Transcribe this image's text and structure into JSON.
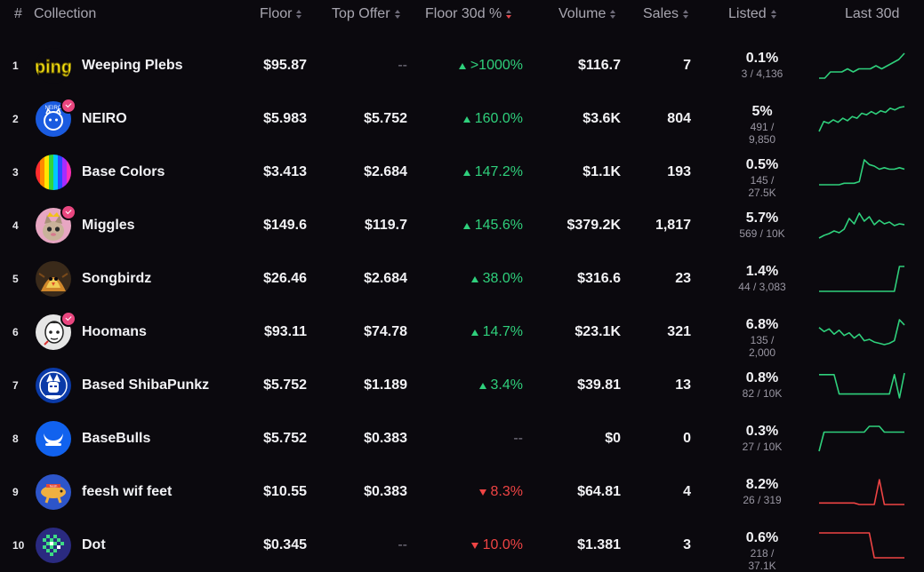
{
  "header": {
    "rank": "#",
    "collection": "Collection",
    "floor": "Floor",
    "top_offer": "Top Offer",
    "floor_30d": "Floor 30d %",
    "volume": "Volume",
    "sales": "Sales",
    "listed": "Listed",
    "last_30d": "Last 30d"
  },
  "colors": {
    "positive": "#2fd07c",
    "negative": "#ef4444"
  },
  "rows": [
    {
      "rank": "1",
      "name": "Weeping Plebs",
      "floor": "$95.87",
      "top_offer": "--",
      "change": ">1000%",
      "trend": "up",
      "volume": "$116.7",
      "sales": "7",
      "listed_pct": "0.1%",
      "listed_count": "3 / 4,136",
      "verified": false,
      "avatar_icon": "ping-logo-icon",
      "spark_color": "#2fd07c",
      "spark": [
        0.3,
        0.3,
        0.32,
        0.32,
        0.32,
        0.33,
        0.32,
        0.33,
        0.33,
        0.33,
        0.34,
        0.33,
        0.34,
        0.35,
        0.36,
        0.38
      ]
    },
    {
      "rank": "2",
      "name": "NEIRO",
      "floor": "$5.983",
      "top_offer": "$5.752",
      "change": "160.0%",
      "trend": "up",
      "volume": "$3.6K",
      "sales": "804",
      "listed_pct": "5%",
      "listed_count": "491 / 9,850",
      "verified": true,
      "avatar_icon": "neiro-dog-icon",
      "spark_color": "#2fd07c",
      "spark": [
        2.0,
        3.2,
        3.0,
        3.4,
        3.1,
        3.6,
        3.3,
        3.8,
        3.6,
        4.2,
        4.0,
        4.4,
        4.1,
        4.5,
        4.3,
        4.8,
        4.6,
        4.9,
        5.0
      ]
    },
    {
      "rank": "3",
      "name": "Base Colors",
      "floor": "$3.413",
      "top_offer": "$2.684",
      "change": "147.2%",
      "trend": "up",
      "volume": "$1.1K",
      "sales": "193",
      "listed_pct": "0.5%",
      "listed_count": "145 / 27.5K",
      "verified": false,
      "avatar_icon": "rainbow-bars-icon",
      "spark_color": "#2fd07c",
      "spark": [
        1.0,
        1.0,
        1.0,
        1.0,
        1.0,
        1.1,
        1.1,
        1.1,
        1.2,
        2.6,
        2.3,
        2.2,
        2.0,
        2.1,
        2.0,
        2.0,
        2.1,
        2.0
      ]
    },
    {
      "rank": "4",
      "name": "Miggles",
      "floor": "$149.6",
      "top_offer": "$119.7",
      "change": "145.6%",
      "trend": "up",
      "volume": "$379.2K",
      "sales": "1,817",
      "listed_pct": "5.7%",
      "listed_count": "569 / 10K",
      "verified": true,
      "avatar_icon": "cat-king-icon",
      "spark_color": "#2fd07c",
      "spark": [
        1.0,
        1.3,
        1.5,
        1.8,
        1.6,
        2.0,
        3.2,
        2.6,
        3.8,
        2.9,
        3.4,
        2.5,
        3.0,
        2.6,
        2.8,
        2.4,
        2.6,
        2.5
      ]
    },
    {
      "rank": "5",
      "name": "Songbirdz",
      "floor": "$26.46",
      "top_offer": "$2.684",
      "change": "38.0%",
      "trend": "up",
      "volume": "$316.6",
      "sales": "23",
      "listed_pct": "1.4%",
      "listed_count": "44 / 3,083",
      "verified": false,
      "avatar_icon": "bird-art-icon",
      "spark_color": "#2fd07c",
      "spark": [
        1.0,
        1.0,
        1.0,
        1.0,
        1.0,
        1.0,
        1.0,
        1.0,
        1.0,
        1.0,
        1.0,
        1.0,
        1.0,
        1.0,
        1.0,
        1.0,
        5.0,
        5.0
      ]
    },
    {
      "rank": "6",
      "name": "Hoomans",
      "floor": "$93.11",
      "top_offer": "$74.78",
      "change": "14.7%",
      "trend": "up",
      "volume": "$23.1K",
      "sales": "321",
      "listed_pct": "6.8%",
      "listed_count": "135 / 2,000",
      "verified": true,
      "avatar_icon": "hooman-face-icon",
      "spark_color": "#2fd07c",
      "spark": [
        3.0,
        2.7,
        2.9,
        2.5,
        2.8,
        2.4,
        2.6,
        2.2,
        2.5,
        2.0,
        2.1,
        1.9,
        1.8,
        1.7,
        1.8,
        2.0,
        3.6,
        3.2
      ]
    },
    {
      "rank": "7",
      "name": "Based ShibaPunkz",
      "floor": "$5.752",
      "top_offer": "$1.189",
      "change": "3.4%",
      "trend": "up",
      "volume": "$39.81",
      "sales": "13",
      "listed_pct": "0.8%",
      "listed_count": "82 / 10K",
      "verified": false,
      "avatar_icon": "shiba-punk-icon",
      "spark_color": "#2fd07c",
      "spark": [
        4.0,
        4.0,
        4.0,
        4.0,
        1.5,
        1.5,
        1.5,
        1.5,
        1.5,
        1.5,
        1.5,
        1.5,
        1.5,
        1.5,
        1.5,
        4.0,
        1.0,
        4.2
      ]
    },
    {
      "rank": "8",
      "name": "BaseBulls",
      "floor": "$5.752",
      "top_offer": "$0.383",
      "change": "--",
      "trend": "none",
      "volume": "$0",
      "sales": "0",
      "listed_pct": "0.3%",
      "listed_count": "27 / 10K",
      "verified": false,
      "avatar_icon": "bull-horns-icon",
      "spark_color": "#2fd07c",
      "spark": [
        1.0,
        3.0,
        3.0,
        3.0,
        3.0,
        3.0,
        3.0,
        3.0,
        3.0,
        3.0,
        3.6,
        3.6,
        3.6,
        3.0,
        3.0,
        3.0,
        3.0,
        3.0
      ]
    },
    {
      "rank": "9",
      "name": "feesh wif feet",
      "floor": "$10.55",
      "top_offer": "$0.383",
      "change": "8.3%",
      "trend": "down",
      "volume": "$64.81",
      "sales": "4",
      "listed_pct": "8.2%",
      "listed_count": "26 / 319",
      "verified": false,
      "avatar_icon": "feesh-icon",
      "spark_color": "#ef4444",
      "spark": [
        2.0,
        2.0,
        2.0,
        2.0,
        2.0,
        2.0,
        2.0,
        2.0,
        1.8,
        1.8,
        1.8,
        1.8,
        5.0,
        1.8,
        1.8,
        1.8,
        1.8,
        1.8
      ]
    },
    {
      "rank": "10",
      "name": "Dot",
      "floor": "$0.345",
      "top_offer": "--",
      "change": "10.0%",
      "trend": "down",
      "volume": "$1.381",
      "sales": "3",
      "listed_pct": "0.6%",
      "listed_count": "218 / 37.1K",
      "verified": false,
      "avatar_icon": "pixel-dot-icon",
      "spark_color": "#ef4444",
      "spark": [
        5.0,
        5.0,
        5.0,
        5.0,
        5.0,
        5.0,
        5.0,
        5.0,
        5.0,
        5.0,
        5.0,
        1.0,
        1.0,
        1.0,
        1.0,
        1.0,
        1.0,
        1.0
      ]
    }
  ]
}
